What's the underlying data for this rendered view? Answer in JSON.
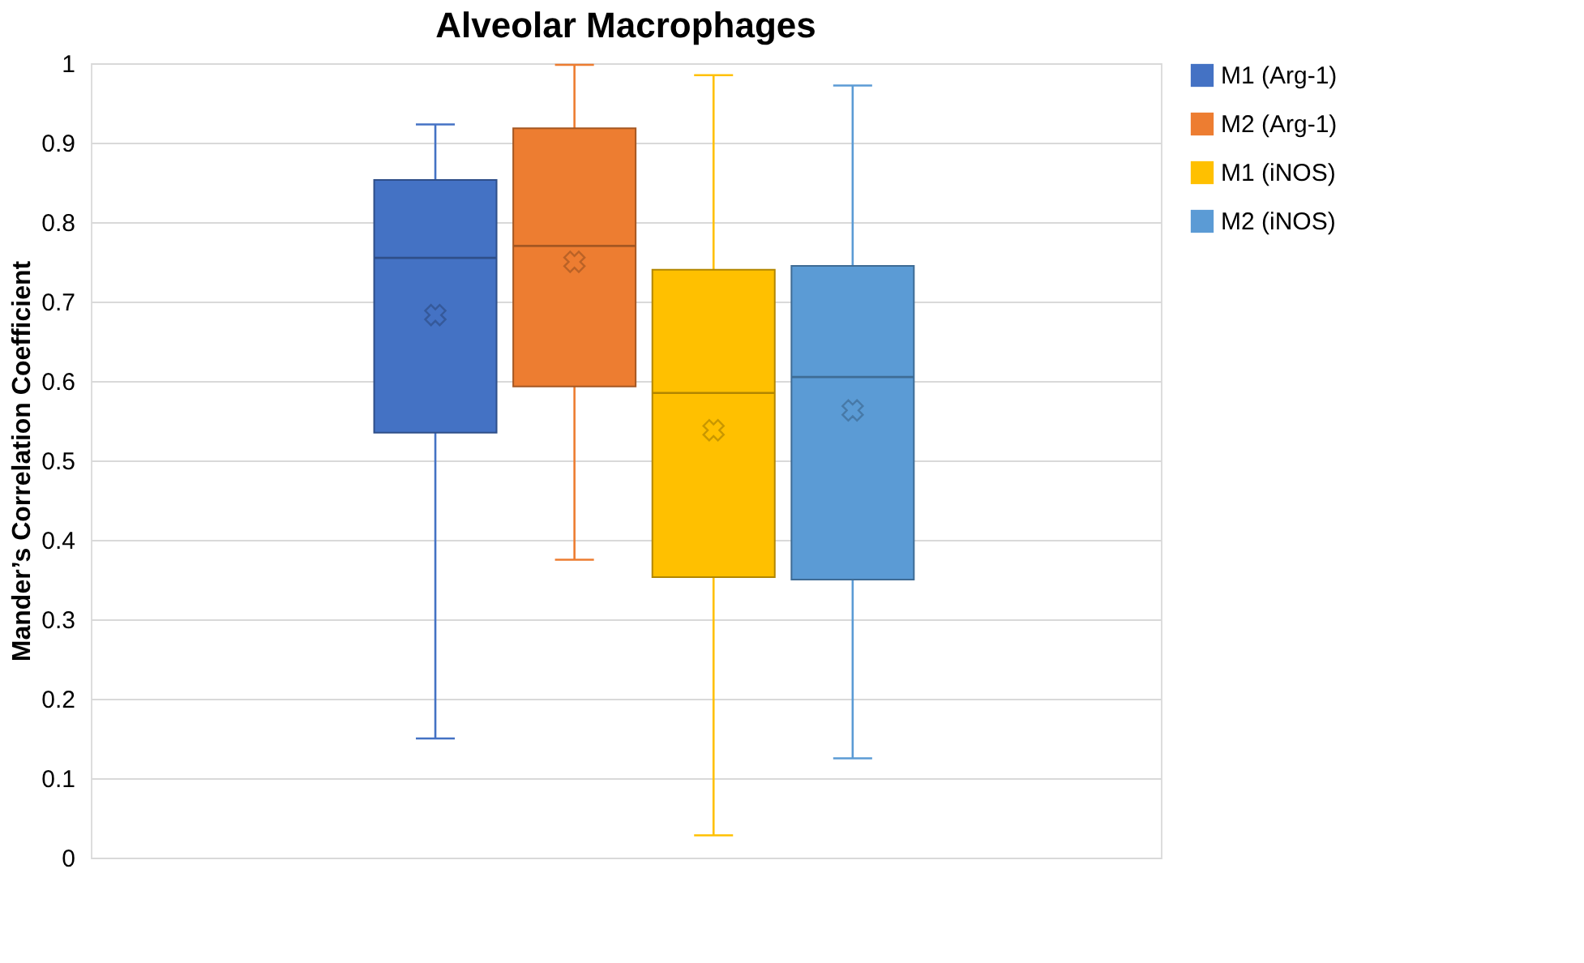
{
  "chart_data": {
    "type": "box",
    "title": "Alveolar Macrophages",
    "ylabel": "Mander’s Correlation Coefficient",
    "categories": [
      null
    ],
    "series": [
      {
        "name": "M1 (Arg-1)",
        "color": "#4472c4",
        "boxes": [
          {
            "low": 0.15,
            "q1": 0.535,
            "median": 0.755,
            "q3": 0.853,
            "high": 0.923,
            "mean": 0.683
          }
        ]
      },
      {
        "name": "M2 (Arg-1)",
        "color": "#ed7d31",
        "boxes": [
          {
            "low": 0.375,
            "q1": 0.593,
            "median": 0.77,
            "q3": 0.918,
            "high": 0.998,
            "mean": 0.75
          }
        ]
      },
      {
        "name": "M1 (iNOS)",
        "color": "#ffc000",
        "boxes": [
          {
            "low": 0.028,
            "q1": 0.353,
            "median": 0.585,
            "q3": 0.74,
            "high": 0.985,
            "mean": 0.538
          }
        ]
      },
      {
        "name": "M2 (iNOS)",
        "color": "#5b9bd5",
        "boxes": [
          {
            "low": 0.125,
            "q1": 0.35,
            "median": 0.605,
            "q3": 0.745,
            "high": 0.972,
            "mean": 0.563
          }
        ]
      }
    ],
    "ylim": [
      0,
      1
    ],
    "yticks": [
      0,
      0.1,
      0.2,
      0.3,
      0.4,
      0.5,
      0.6,
      0.7,
      0.8,
      0.9,
      1
    ],
    "grid": "y",
    "legend": "right",
    "marker": "cross",
    "tick_labels": "y"
  }
}
